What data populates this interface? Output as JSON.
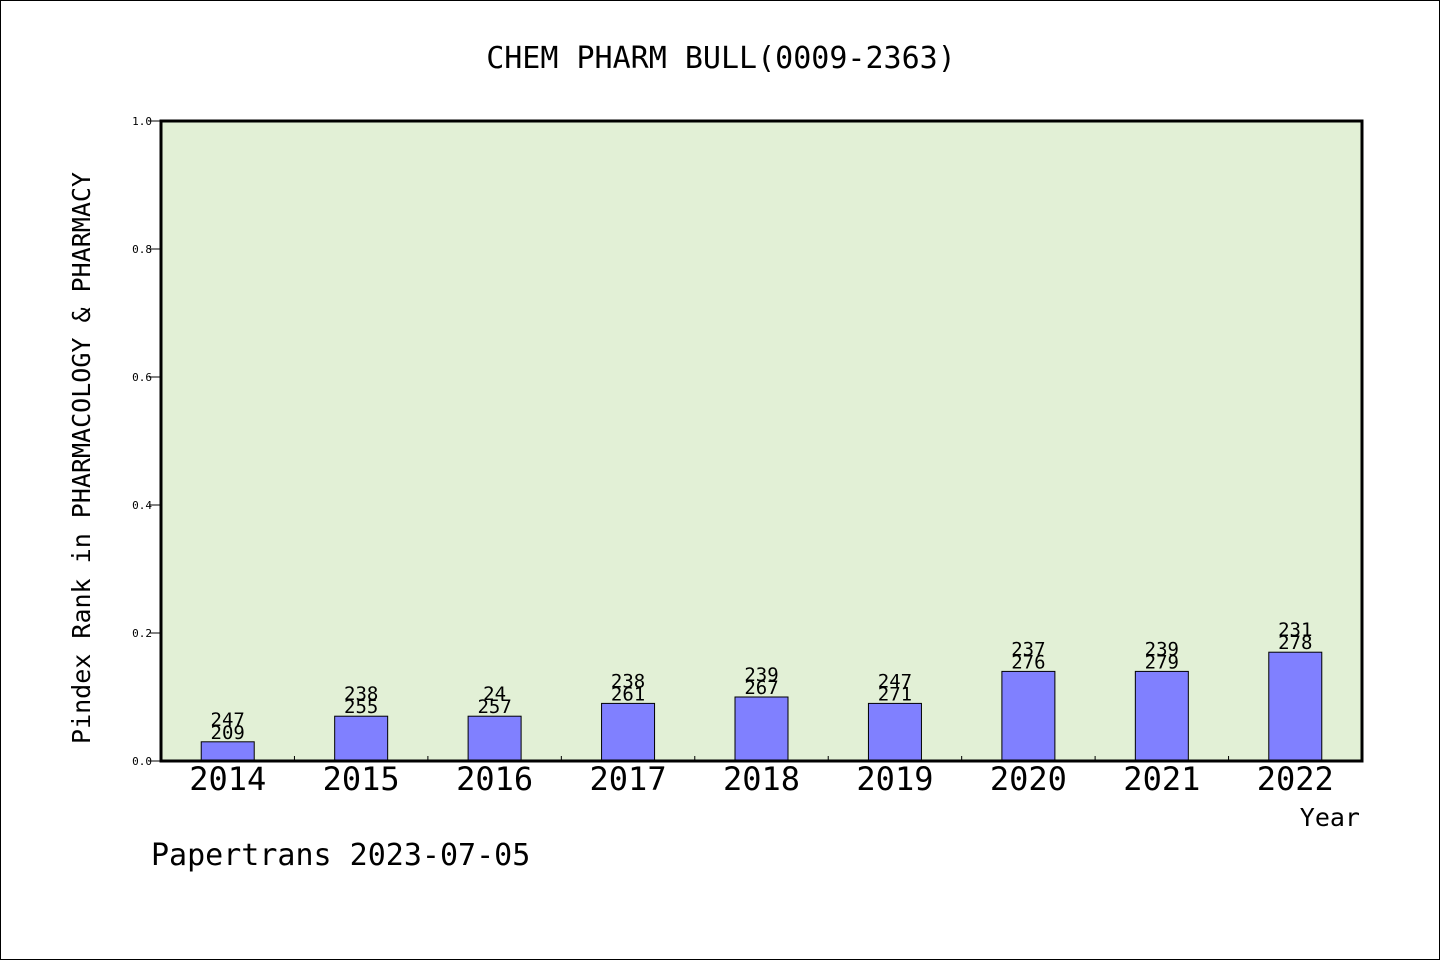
{
  "chart_data": {
    "type": "bar",
    "title": "CHEM PHARM BULL(0009-2363)",
    "xlabel": "Year",
    "ylabel": "Pindex Rank in PHARMACOLOGY & PHARMACY",
    "ylim": [
      0.0,
      1.0
    ],
    "yticks": [
      "0.0",
      "0.2",
      "0.4",
      "0.6",
      "0.8",
      "1.0"
    ],
    "categories": [
      "2014",
      "2015",
      "2016",
      "2017",
      "2018",
      "2019",
      "2020",
      "2021",
      "2022"
    ],
    "values": [
      0.03,
      0.07,
      0.07,
      0.09,
      0.1,
      0.09,
      0.14,
      0.14,
      0.17
    ],
    "label_top": [
      "247",
      "238",
      "24",
      "238",
      "239",
      "247",
      "237",
      "239",
      "231"
    ],
    "label_bottom": [
      "209",
      "255",
      "257",
      "261",
      "267",
      "271",
      "276",
      "279",
      "278"
    ],
    "bar_color": "#8080ff",
    "plot_background": "#e2f0d6",
    "grid": false
  },
  "footer": {
    "credit": "Papertrans 2023-07-05"
  }
}
